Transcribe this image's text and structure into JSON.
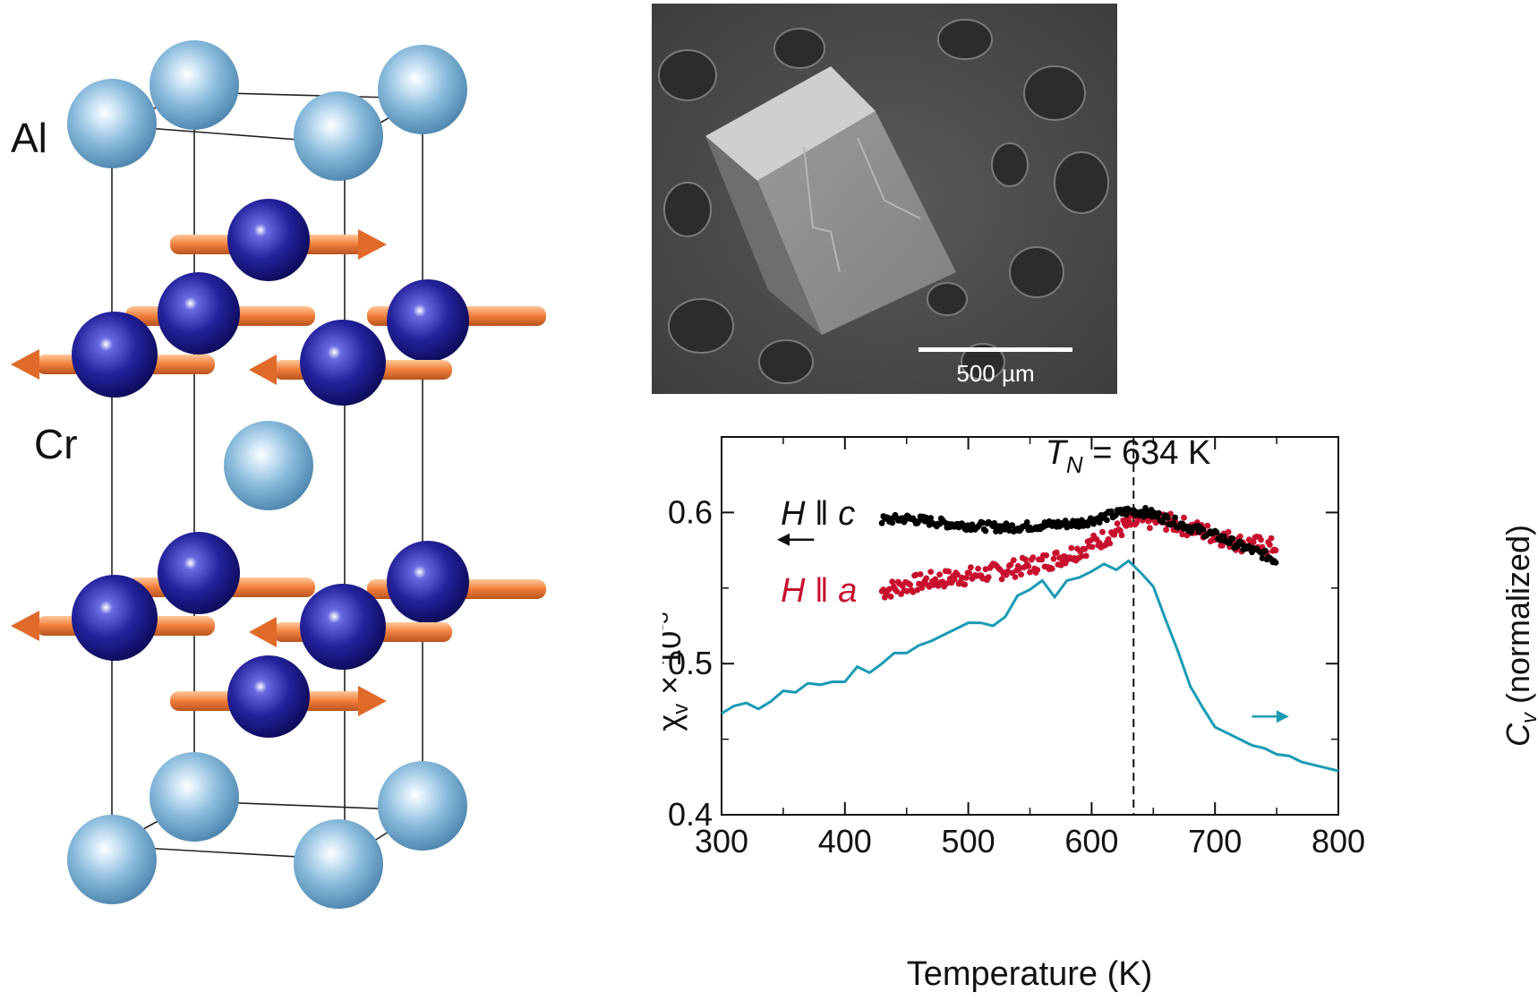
{
  "crystal": {
    "label_al": "Al",
    "label_cr": "Cr",
    "colors": {
      "al": "#7ab0d6",
      "cr": "#1b1a8f",
      "spin": "#f07e3c"
    }
  },
  "sem": {
    "scale_label": "500 µm"
  },
  "chart_data": {
    "type": "scatter",
    "title_T": "T",
    "title_sub": "N",
    "title_value": " = 634 K",
    "xlabel": "Temperature (K)",
    "ylabel_left_chi": "χ",
    "ylabel_left_sub": "v",
    "ylabel_left_times": " × 10",
    "ylabel_left_exp": "-3",
    "ylabel_right_C": "C",
    "ylabel_right_sub": "v",
    "ylabel_right_rest": " (normalized)",
    "xlim": [
      300,
      800
    ],
    "ylim": [
      0.4,
      0.65
    ],
    "xticks": [
      300,
      400,
      500,
      600,
      700,
      800
    ],
    "yticks": [
      0.4,
      0.5,
      0.6
    ],
    "ytick_labels": [
      "0.4",
      "0.5",
      "0.6"
    ],
    "TN": 634,
    "series": [
      {
        "name": "H || c",
        "name_H": "H",
        "name_par": " ǁ ",
        "name_dir": "c",
        "color": "#000000",
        "kind": "points",
        "x_range": [
          430,
          750
        ],
        "points": [
          [
            430,
            0.595
          ],
          [
            450,
            0.596
          ],
          [
            470,
            0.594
          ],
          [
            490,
            0.592
          ],
          [
            510,
            0.591
          ],
          [
            530,
            0.59
          ],
          [
            550,
            0.591
          ],
          [
            570,
            0.592
          ],
          [
            590,
            0.593
          ],
          [
            610,
            0.597
          ],
          [
            630,
            0.601
          ],
          [
            645,
            0.6
          ],
          [
            660,
            0.596
          ],
          [
            680,
            0.59
          ],
          [
            700,
            0.585
          ],
          [
            720,
            0.578
          ],
          [
            740,
            0.572
          ],
          [
            750,
            0.568
          ]
        ]
      },
      {
        "name": "H || a",
        "name_H": "H",
        "name_par": " ǁ ",
        "name_dir": "a",
        "color": "#c8102e",
        "kind": "points",
        "x_range": [
          430,
          750
        ],
        "points": [
          [
            430,
            0.548
          ],
          [
            450,
            0.552
          ],
          [
            470,
            0.555
          ],
          [
            490,
            0.557
          ],
          [
            510,
            0.559
          ],
          [
            530,
            0.562
          ],
          [
            550,
            0.565
          ],
          [
            570,
            0.569
          ],
          [
            590,
            0.575
          ],
          [
            610,
            0.583
          ],
          [
            630,
            0.592
          ],
          [
            645,
            0.595
          ],
          [
            660,
            0.594
          ],
          [
            680,
            0.59
          ],
          [
            700,
            0.585
          ],
          [
            720,
            0.58
          ],
          [
            740,
            0.578
          ],
          [
            750,
            0.577
          ]
        ]
      },
      {
        "name": "Cv",
        "color": "#1a9ab5",
        "kind": "line",
        "points": [
          [
            300,
            0.467
          ],
          [
            310,
            0.472
          ],
          [
            320,
            0.474
          ],
          [
            330,
            0.47
          ],
          [
            340,
            0.475
          ],
          [
            350,
            0.482
          ],
          [
            360,
            0.481
          ],
          [
            370,
            0.487
          ],
          [
            380,
            0.486
          ],
          [
            390,
            0.488
          ],
          [
            400,
            0.488
          ],
          [
            410,
            0.498
          ],
          [
            420,
            0.494
          ],
          [
            430,
            0.5
          ],
          [
            440,
            0.507
          ],
          [
            450,
            0.507
          ],
          [
            460,
            0.512
          ],
          [
            470,
            0.515
          ],
          [
            480,
            0.519
          ],
          [
            490,
            0.523
          ],
          [
            500,
            0.527
          ],
          [
            510,
            0.527
          ],
          [
            520,
            0.525
          ],
          [
            530,
            0.531
          ],
          [
            540,
            0.545
          ],
          [
            550,
            0.549
          ],
          [
            560,
            0.555
          ],
          [
            570,
            0.544
          ],
          [
            580,
            0.555
          ],
          [
            590,
            0.557
          ],
          [
            600,
            0.561
          ],
          [
            610,
            0.566
          ],
          [
            620,
            0.562
          ],
          [
            630,
            0.568
          ],
          [
            640,
            0.56
          ],
          [
            650,
            0.551
          ],
          [
            660,
            0.529
          ],
          [
            670,
            0.508
          ],
          [
            680,
            0.485
          ],
          [
            690,
            0.471
          ],
          [
            700,
            0.458
          ],
          [
            710,
            0.454
          ],
          [
            720,
            0.45
          ],
          [
            730,
            0.446
          ],
          [
            740,
            0.444
          ],
          [
            750,
            0.44
          ],
          [
            760,
            0.439
          ],
          [
            770,
            0.435
          ],
          [
            780,
            0.433
          ],
          [
            790,
            0.431
          ],
          [
            800,
            0.429
          ]
        ]
      }
    ],
    "arrow_left": {
      "x": [
        345,
        375
      ],
      "y": 0.582
    },
    "arrow_right": {
      "x": [
        730,
        760
      ],
      "y": 0.465
    },
    "grid": false
  }
}
